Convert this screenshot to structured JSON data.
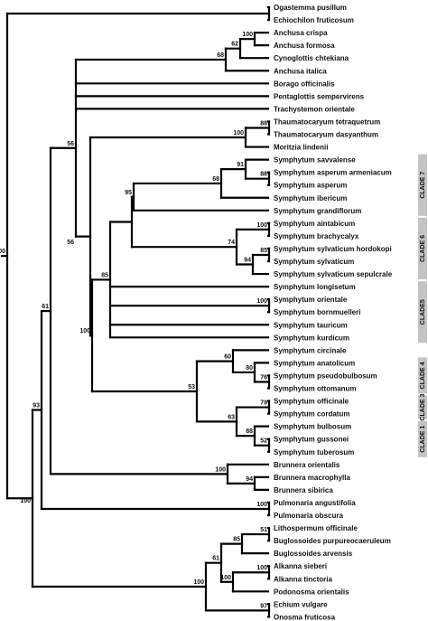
{
  "taxa": [
    "Ogastemma pusillum",
    "Echiochilon fruticosum",
    "Anchusa crispa",
    "Anchusa formosa",
    "Cynoglottis chtekiana",
    "Anchusa italica",
    "Borago officinalis",
    "Pentaglottis sempervirens",
    "Trachystemon orientale",
    "Thaumatocaryum tetraquetrum",
    "Thaumatocaryum dasyanthum",
    "Moritzia lindenii",
    "Symphytum savvalense",
    "Symphytum asperum armeniacum",
    "Symphytum asperum",
    "Symphytum ibericum",
    "Symphytum grandiflorum",
    "Symphytum aintabicum",
    "Symphytum brachycalyx",
    "Symphytum sylvaticum  hordokopi",
    "Symphytum sylvaticum",
    "Symphytum sylvaticum  sepulcrale",
    "Symphytum longisetum",
    "Symphytum orientale",
    "Symphytum bornmuelleri",
    "Symphytum tauricum",
    "Symphytum kurdicum",
    "Symphytum circinale",
    "Symphytum anatolicum",
    "Symphytum pseudobulbosum",
    "Symphytum ottomanum",
    "Symphytum officinale",
    "Symphytum cordatum",
    "Symphytum bulbosum",
    "Symphytum gussonei",
    "Symphytum tuberosum",
    "Brunnera orientalis",
    "Brunnera macrophylla",
    "Brunnera sibirica",
    "Pulmonaria angustifolia",
    "Pulmonaria obscura",
    "Lithospermum officinale",
    "Buglossoides purpureocaeruleum",
    "Buglossoides arvensis",
    "Alkanna sieberi",
    "Alkanna tinctoria",
    "Podonosma orientalis",
    "Echium vulgare",
    "Onosma fruticosa"
  ],
  "supports": {
    "anchusa_crispa_formosa": "100",
    "anchusa_plus_cynoglottis": "62",
    "anchusa_clade": "68",
    "thaumatocaryum": "88",
    "thaumatocaryum_moritzia": "100",
    "asperum_pair": "88",
    "savvalense_asperum": "91",
    "clade7": "68",
    "clade7_grandiflorum": "95",
    "aintabicum_brachycalyx": "100",
    "sylvaticum_pair": "85",
    "sylvaticum_group": "94",
    "clade6": "74",
    "orientale_bornmuelleri": "100",
    "core_symphytum": "85",
    "pseudobulbosum_ottomanum": "76",
    "anatolicum_group": "80",
    "clade4": "60",
    "officinale_cordatum": "79",
    "gussonei_tuberosum": "52",
    "bulbosum_group": "88",
    "clade1_3": "63",
    "clade1_4": "53",
    "symphytum": "100",
    "boraginoideae_core": "56",
    "with_brunnera": "61",
    "with_pulmonaria": "93",
    "brunnera_macro_sibirica": "94",
    "brunnera": "100",
    "pulmonaria": "100",
    "buglossoides_pair": "51",
    "lithospermeae_a": "85",
    "alkanna_pair": "100",
    "alkanna_podonosma": "100",
    "lithospermeae_b": "61",
    "echium_onosma": "97",
    "lithospermeae": "100",
    "root": "100"
  },
  "clades": [
    {
      "label": "CLADE 7"
    },
    {
      "label": "CLADE 6"
    },
    {
      "label": "CLADE5"
    },
    {
      "label": "CLADE 4"
    },
    {
      "label": "CLADE 3"
    },
    {
      "label": "CLADE 1"
    }
  ],
  "colors": {
    "branch": "#000000",
    "clade_bar": "#c4c4c4",
    "text": "#111111"
  }
}
